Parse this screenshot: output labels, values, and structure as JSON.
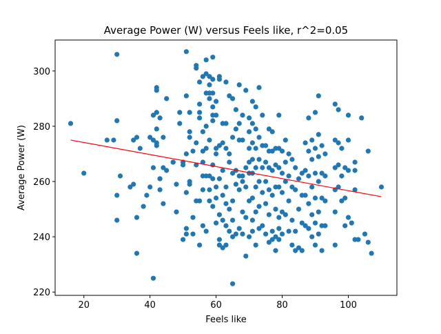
{
  "chart_data": {
    "type": "scatter",
    "title": "Average Power (W) versus Feels like, r^2=0.05",
    "xlabel": "Feels like",
    "ylabel": "Average Power (W)",
    "xlim": [
      11.3,
      114.7
    ],
    "ylim": [
      218.8,
      311.2
    ],
    "xticks": [
      20,
      40,
      60,
      80,
      100
    ],
    "yticks": [
      220,
      240,
      260,
      280,
      300
    ],
    "grid": false,
    "point_color": "#1f77b4",
    "fit_color": "#ff0000",
    "fit_line": {
      "x": [
        16,
        110
      ],
      "y": [
        275,
        254.5
      ]
    },
    "points": [
      [
        16,
        281
      ],
      [
        20,
        263
      ],
      [
        27,
        275
      ],
      [
        29,
        275
      ],
      [
        30,
        306
      ],
      [
        30,
        282
      ],
      [
        30,
        255
      ],
      [
        30,
        246
      ],
      [
        31,
        262
      ],
      [
        34,
        258
      ],
      [
        35,
        259
      ],
      [
        35,
        275
      ],
      [
        36,
        276
      ],
      [
        36,
        247
      ],
      [
        36,
        234
      ],
      [
        37,
        272
      ],
      [
        38,
        251
      ],
      [
        39,
        255
      ],
      [
        40,
        276
      ],
      [
        40,
        258
      ],
      [
        41,
        284
      ],
      [
        41,
        275
      ],
      [
        41,
        265
      ],
      [
        41,
        225
      ],
      [
        42,
        274
      ],
      [
        42,
        273
      ],
      [
        42,
        294
      ],
      [
        42,
        293
      ],
      [
        42,
        285
      ],
      [
        42,
        279
      ],
      [
        43,
        283
      ],
      [
        43,
        257
      ],
      [
        43,
        261
      ],
      [
        43,
        261
      ],
      [
        44,
        276
      ],
      [
        44,
        265
      ],
      [
        44,
        252
      ],
      [
        45,
        290
      ],
      [
        45,
        264
      ],
      [
        47,
        267
      ],
      [
        47,
        267
      ],
      [
        48,
        259
      ],
      [
        48,
        249
      ],
      [
        49,
        285
      ],
      [
        49,
        281
      ],
      [
        50,
        239
      ],
      [
        50,
        267
      ],
      [
        50,
        266
      ],
      [
        51,
        307
      ],
      [
        51,
        291
      ],
      [
        51,
        270
      ],
      [
        51,
        256
      ],
      [
        51,
        243
      ],
      [
        51,
        241
      ],
      [
        52,
        285
      ],
      [
        52,
        278
      ],
      [
        52,
        276
      ],
      [
        52,
        260
      ],
      [
        52,
        259
      ],
      [
        53,
        247
      ],
      [
        53,
        241
      ],
      [
        53,
        271
      ],
      [
        54,
        302
      ],
      [
        54,
        301
      ],
      [
        54,
        274
      ],
      [
        54,
        266
      ],
      [
        54,
        253
      ],
      [
        55,
        296
      ],
      [
        55,
        288
      ],
      [
        55,
        285
      ],
      [
        55,
        283
      ],
      [
        55,
        253
      ],
      [
        55,
        237
      ],
      [
        56,
        298
      ],
      [
        56,
        278
      ],
      [
        56,
        271
      ],
      [
        56,
        267
      ],
      [
        56,
        262
      ],
      [
        56,
        257
      ],
      [
        56,
        244
      ],
      [
        57,
        304
      ],
      [
        57,
        299
      ],
      [
        57,
        292
      ],
      [
        57,
        280
      ],
      [
        57,
        272
      ],
      [
        57,
        262
      ],
      [
        57,
        242
      ],
      [
        58,
        298
      ],
      [
        58,
        295
      ],
      [
        58,
        292
      ],
      [
        58,
        290
      ],
      [
        58,
        275
      ],
      [
        58,
        262
      ],
      [
        58,
        257
      ],
      [
        58,
        253
      ],
      [
        59,
        305
      ],
      [
        59,
        297
      ],
      [
        59,
        292
      ],
      [
        59,
        287
      ],
      [
        59,
        284
      ],
      [
        59,
        282
      ],
      [
        59,
        266
      ],
      [
        59,
        261
      ],
      [
        59,
        251
      ],
      [
        60,
        289
      ],
      [
        60,
        284
      ],
      [
        60,
        272
      ],
      [
        60,
        270
      ],
      [
        60,
        258
      ],
      [
        60,
        254
      ],
      [
        60,
        245
      ],
      [
        61,
        298
      ],
      [
        61,
        297
      ],
      [
        61,
        273
      ],
      [
        61,
        261
      ],
      [
        61,
        248
      ],
      [
        61,
        239
      ],
      [
        61,
        237
      ],
      [
        62,
        281
      ],
      [
        62,
        274
      ],
      [
        62,
        264
      ],
      [
        62,
        255
      ],
      [
        62,
        246
      ],
      [
        62,
        236
      ],
      [
        63,
        296
      ],
      [
        63,
        281
      ],
      [
        63,
        272
      ],
      [
        63,
        258
      ],
      [
        63,
        252
      ],
      [
        63,
        244
      ],
      [
        63,
        237
      ],
      [
        64,
        291
      ],
      [
        64,
        270
      ],
      [
        64,
        267
      ],
      [
        64,
        250
      ],
      [
        64,
        242
      ],
      [
        65,
        290
      ],
      [
        65,
        276
      ],
      [
        65,
        263
      ],
      [
        65,
        253
      ],
      [
        65,
        246
      ],
      [
        65,
        240
      ],
      [
        65,
        223
      ],
      [
        66,
        286
      ],
      [
        66,
        279
      ],
      [
        66,
        264
      ],
      [
        66,
        259
      ],
      [
        66,
        241
      ],
      [
        67,
        295
      ],
      [
        67,
        281
      ],
      [
        67,
        275
      ],
      [
        67,
        262
      ],
      [
        67,
        257
      ],
      [
        67,
        243
      ],
      [
        68,
        284
      ],
      [
        68,
        275
      ],
      [
        68,
        262
      ],
      [
        68,
        260
      ],
      [
        68,
        249
      ],
      [
        68,
        241
      ],
      [
        69,
        293
      ],
      [
        69,
        265
      ],
      [
        69,
        258
      ],
      [
        69,
        247
      ],
      [
        69,
        233
      ],
      [
        70,
        283
      ],
      [
        70,
        278
      ],
      [
        70,
        272
      ],
      [
        70,
        267
      ],
      [
        70,
        263
      ],
      [
        70,
        253
      ],
      [
        70,
        240
      ],
      [
        71,
        289
      ],
      [
        71,
        281
      ],
      [
        71,
        274
      ],
      [
        71,
        268
      ],
      [
        71,
        263
      ],
      [
        71,
        254
      ],
      [
        71,
        246
      ],
      [
        71,
        242
      ],
      [
        72,
        287
      ],
      [
        72,
        279
      ],
      [
        72,
        272
      ],
      [
        72,
        265
      ],
      [
        72,
        258
      ],
      [
        72,
        249
      ],
      [
        72,
        237
      ],
      [
        73,
        294
      ],
      [
        73,
        276
      ],
      [
        73,
        268
      ],
      [
        73,
        260
      ],
      [
        73,
        251
      ],
      [
        73,
        243
      ],
      [
        74,
        284
      ],
      [
        74,
        273
      ],
      [
        74,
        265
      ],
      [
        74,
        256
      ],
      [
        74,
        244
      ],
      [
        75,
        273
      ],
      [
        75,
        267
      ],
      [
        75,
        260
      ],
      [
        75,
        252
      ],
      [
        75,
        241
      ],
      [
        76,
        279
      ],
      [
        76,
        271
      ],
      [
        76,
        265
      ],
      [
        76,
        257
      ],
      [
        76,
        248
      ],
      [
        76,
        238
      ],
      [
        77,
        278
      ],
      [
        77,
        271
      ],
      [
        77,
        264
      ],
      [
        77,
        255
      ],
      [
        77,
        242
      ],
      [
        77,
        239
      ],
      [
        78,
        272
      ],
      [
        78,
        266
      ],
      [
        78,
        258
      ],
      [
        78,
        250
      ],
      [
        78,
        240
      ],
      [
        78,
        235
      ],
      [
        79,
        284
      ],
      [
        79,
        272
      ],
      [
        79,
        265
      ],
      [
        79,
        258
      ],
      [
        79,
        247
      ],
      [
        79,
        243
      ],
      [
        79,
        239
      ],
      [
        80,
        271
      ],
      [
        80,
        263
      ],
      [
        80,
        256
      ],
      [
        80,
        249
      ],
      [
        80,
        241
      ],
      [
        81,
        275
      ],
      [
        81,
        267
      ],
      [
        81,
        260
      ],
      [
        81,
        248
      ],
      [
        82,
        270
      ],
      [
        82,
        262
      ],
      [
        82,
        253
      ],
      [
        82,
        242
      ],
      [
        83,
        268
      ],
      [
        83,
        258
      ],
      [
        83,
        246
      ],
      [
        83,
        237
      ],
      [
        84,
        265
      ],
      [
        84,
        257
      ],
      [
        84,
        242
      ],
      [
        84,
        235
      ],
      [
        85,
        261
      ],
      [
        85,
        250
      ],
      [
        85,
        236
      ],
      [
        86,
        263
      ],
      [
        86,
        255
      ],
      [
        86,
        245
      ],
      [
        86,
        235
      ],
      [
        87,
        274
      ],
      [
        87,
        264
      ],
      [
        87,
        255
      ],
      [
        87,
        244
      ],
      [
        88,
        283
      ],
      [
        88,
        271
      ],
      [
        88,
        262
      ],
      [
        88,
        252
      ],
      [
        88,
        243
      ],
      [
        89,
        275
      ],
      [
        89,
        268
      ],
      [
        89,
        258
      ],
      [
        89,
        248
      ],
      [
        89,
        240
      ],
      [
        90,
        285
      ],
      [
        90,
        272
      ],
      [
        90,
        263
      ],
      [
        90,
        254
      ],
      [
        90,
        245
      ],
      [
        90,
        237
      ],
      [
        91,
        291
      ],
      [
        91,
        277
      ],
      [
        91,
        269
      ],
      [
        91,
        260
      ],
      [
        91,
        249
      ],
      [
        91,
        241
      ],
      [
        92,
        273
      ],
      [
        92,
        263
      ],
      [
        92,
        254
      ],
      [
        92,
        244
      ],
      [
        92,
        235
      ],
      [
        93,
        270
      ],
      [
        93,
        262
      ],
      [
        93,
        253
      ],
      [
        93,
        244
      ],
      [
        96,
        288
      ],
      [
        96,
        275
      ],
      [
        96,
        265
      ],
      [
        96,
        257
      ],
      [
        96,
        249
      ],
      [
        96,
        237
      ],
      [
        97,
        286
      ],
      [
        97,
        274
      ],
      [
        97,
        266
      ],
      [
        97,
        258
      ],
      [
        98,
        272
      ],
      [
        98,
        262
      ],
      [
        98,
        253
      ],
      [
        99,
        265
      ],
      [
        99,
        254
      ],
      [
        99,
        244
      ],
      [
        100,
        284
      ],
      [
        100,
        275
      ],
      [
        100,
        264
      ],
      [
        100,
        247
      ],
      [
        101,
        245
      ],
      [
        102,
        267
      ],
      [
        102,
        264
      ],
      [
        102,
        257
      ],
      [
        102,
        239
      ],
      [
        103,
        239
      ],
      [
        104,
        283
      ],
      [
        105,
        241
      ],
      [
        106,
        271
      ],
      [
        106,
        238
      ],
      [
        107,
        234
      ],
      [
        110,
        258
      ]
    ]
  }
}
